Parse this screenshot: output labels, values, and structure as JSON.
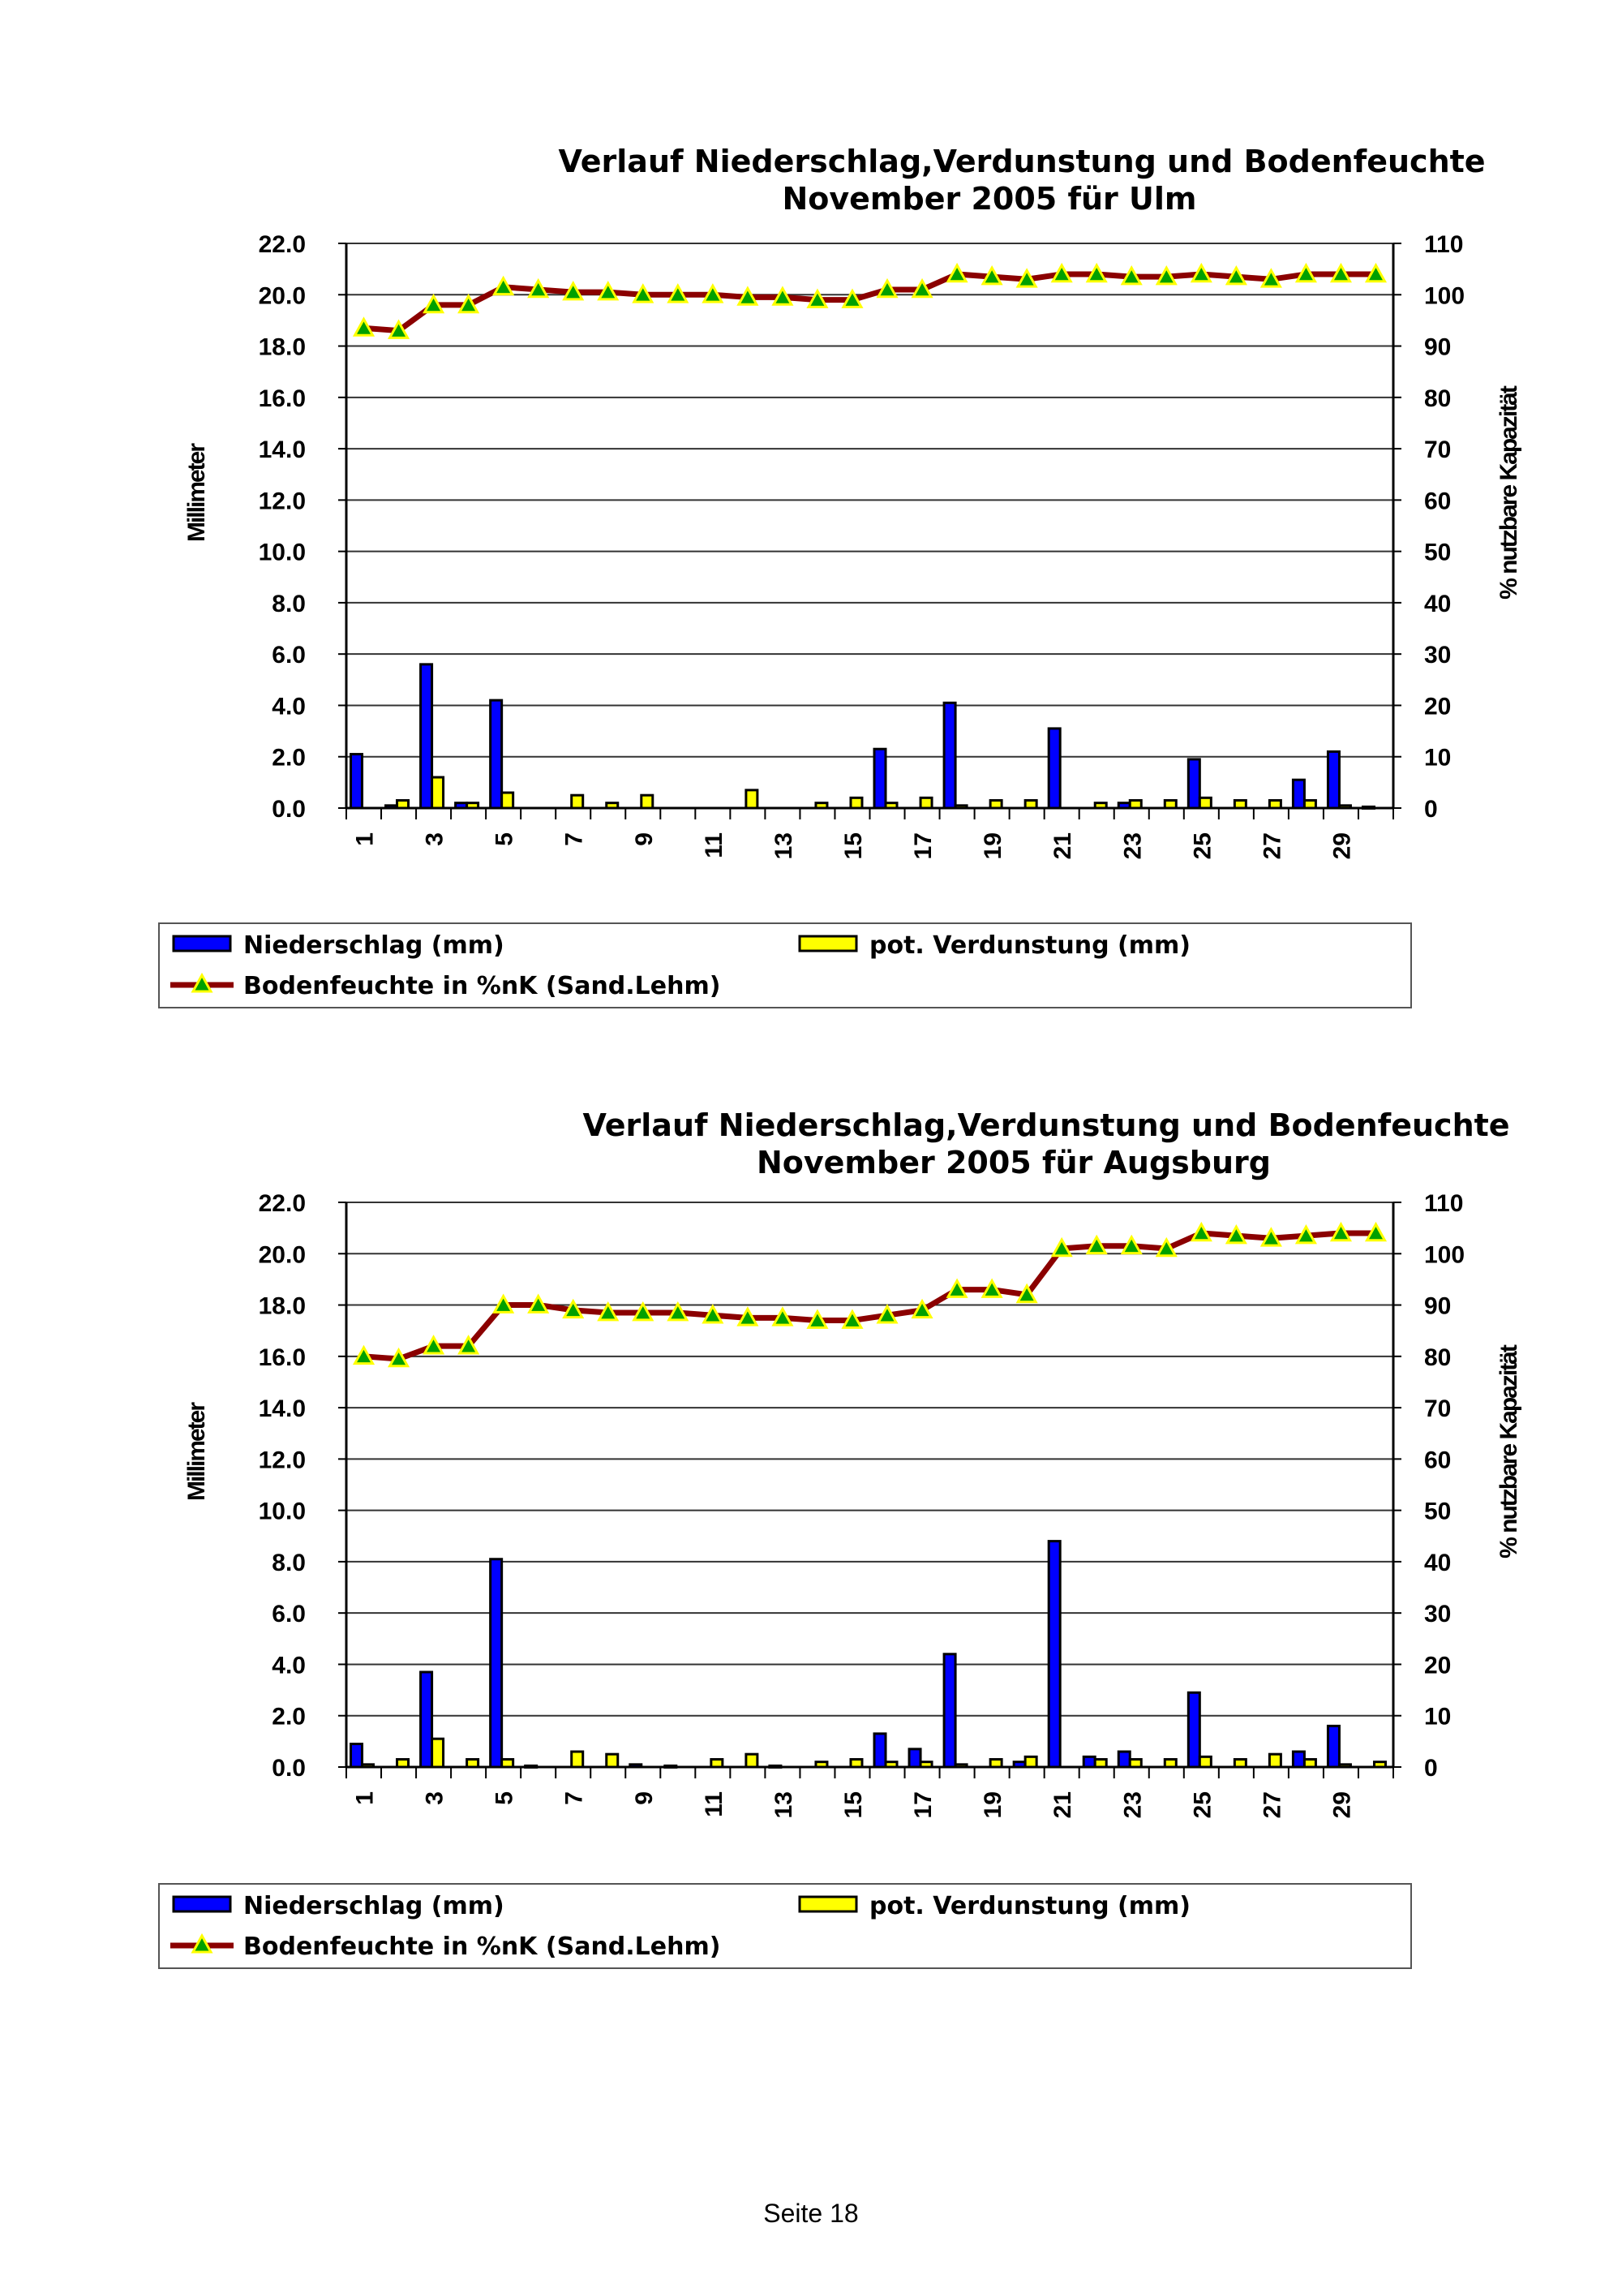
{
  "colors": {
    "precip": "#0000FF",
    "evap": "#FFFF00",
    "soil_line": "#8B0000",
    "soil_marker": "#FFFF00",
    "soil_marker_fill": "#00A000"
  },
  "chart_data": [
    {
      "type": "bar",
      "title": [
        "Verlauf Niederschlag,Verdunstung und Bodenfeuchte",
        "November   2005 für Ulm"
      ],
      "ylabel": "Millimeter",
      "y2label": "% nutzbare Kapazität",
      "ylim": [
        0,
        22
      ],
      "y2lim": [
        0,
        110
      ],
      "yticks": [
        "0.0",
        "2.0",
        "4.0",
        "6.0",
        "8.0",
        "10.0",
        "12.0",
        "14.0",
        "16.0",
        "18.0",
        "20.0",
        "22.0"
      ],
      "y2ticks": [
        "0",
        "10",
        "20",
        "30",
        "40",
        "50",
        "60",
        "70",
        "80",
        "90",
        "100",
        "110"
      ],
      "grid": true,
      "x": [
        1,
        2,
        3,
        4,
        5,
        6,
        7,
        8,
        9,
        10,
        11,
        12,
        13,
        14,
        15,
        16,
        17,
        18,
        19,
        20,
        21,
        22,
        23,
        24,
        25,
        26,
        27,
        28,
        29,
        30
      ],
      "xticklabels": [
        "1",
        "3",
        "5",
        "7",
        "9",
        "11",
        "13",
        "15",
        "17",
        "19",
        "21",
        "23",
        "25",
        "27",
        "29"
      ],
      "series": [
        {
          "name": "Niederschlag (mm)",
          "kind": "bar",
          "axis": "left",
          "values": [
            2.1,
            0.1,
            5.6,
            0.2,
            4.2,
            0,
            0,
            0,
            0,
            0,
            0,
            0,
            0,
            0,
            0,
            2.3,
            0,
            4.1,
            0,
            0,
            3.1,
            0,
            0.2,
            0,
            1.9,
            0,
            0,
            1.1,
            2.2,
            0.05
          ]
        },
        {
          "name": "pot. Verdunstung (mm)",
          "kind": "bar",
          "axis": "left",
          "values": [
            0,
            0.3,
            1.2,
            0.2,
            0.6,
            0,
            0.5,
            0.2,
            0.5,
            0,
            0,
            0.7,
            0,
            0.2,
            0.4,
            0.2,
            0.4,
            0.1,
            0.3,
            0.3,
            0,
            0.2,
            0.3,
            0.3,
            0.4,
            0.3,
            0.3,
            0.3,
            0.1,
            0
          ]
        },
        {
          "name": "Bodenfeuchte in %nK (Sand.Lehm)",
          "kind": "line",
          "axis": "right",
          "values": [
            93.5,
            93,
            98,
            98,
            101.5,
            101,
            100.5,
            100.5,
            100,
            100,
            100,
            99.5,
            99.5,
            99,
            99,
            101,
            101,
            104,
            103.5,
            103,
            104,
            104,
            103.5,
            103.5,
            104,
            103.5,
            103,
            104,
            104,
            104
          ]
        }
      ],
      "legend": "bottom"
    },
    {
      "type": "bar",
      "title": [
        "Verlauf Niederschlag,Verdunstung und Bodenfeuchte",
        "November 2005 für Augsburg"
      ],
      "ylabel": "Millimeter",
      "y2label": "% nutzbare Kapazität",
      "ylim": [
        0,
        22
      ],
      "y2lim": [
        0,
        110
      ],
      "yticks": [
        "0.0",
        "2.0",
        "4.0",
        "6.0",
        "8.0",
        "10.0",
        "12.0",
        "14.0",
        "16.0",
        "18.0",
        "20.0",
        "22.0"
      ],
      "y2ticks": [
        "0",
        "10",
        "20",
        "30",
        "40",
        "50",
        "60",
        "70",
        "80",
        "90",
        "100",
        "110"
      ],
      "grid": true,
      "x": [
        1,
        2,
        3,
        4,
        5,
        6,
        7,
        8,
        9,
        10,
        11,
        12,
        13,
        14,
        15,
        16,
        17,
        18,
        19,
        20,
        21,
        22,
        23,
        24,
        25,
        26,
        27,
        28,
        29,
        30
      ],
      "xticklabels": [
        "1",
        "3",
        "5",
        "7",
        "9",
        "11",
        "13",
        "15",
        "17",
        "19",
        "21",
        "23",
        "25",
        "27",
        "29"
      ],
      "series": [
        {
          "name": "Niederschlag (mm)",
          "kind": "bar",
          "axis": "left",
          "values": [
            0.9,
            0,
            3.7,
            0,
            8.1,
            0.05,
            0,
            0,
            0.1,
            0.05,
            0,
            0,
            0.05,
            0,
            0,
            1.3,
            0.7,
            4.4,
            0,
            0.2,
            8.8,
            0.4,
            0.6,
            0,
            2.9,
            0,
            0,
            0.6,
            1.6,
            0
          ]
        },
        {
          "name": "pot. Verdunstung (mm)",
          "kind": "bar",
          "axis": "left",
          "values": [
            0.1,
            0.3,
            1.1,
            0.3,
            0.3,
            0,
            0.6,
            0.5,
            0,
            0,
            0.3,
            0.5,
            0,
            0.2,
            0.3,
            0.2,
            0.2,
            0.1,
            0.3,
            0.4,
            0,
            0.3,
            0.3,
            0.3,
            0.4,
            0.3,
            0.5,
            0.3,
            0.1,
            0.2
          ]
        },
        {
          "name": "Bodenfeuchte in %nK (Sand.Lehm)",
          "kind": "line",
          "axis": "right",
          "values": [
            80,
            79.5,
            82,
            82,
            90,
            90,
            89,
            88.5,
            88.5,
            88.5,
            88,
            87.5,
            87.5,
            87,
            87,
            88,
            89,
            93,
            93,
            92,
            101,
            101.5,
            101.5,
            101,
            104,
            103.5,
            103,
            103.5,
            104,
            104
          ]
        }
      ],
      "legend": "bottom"
    }
  ],
  "footer": "Seite 18"
}
